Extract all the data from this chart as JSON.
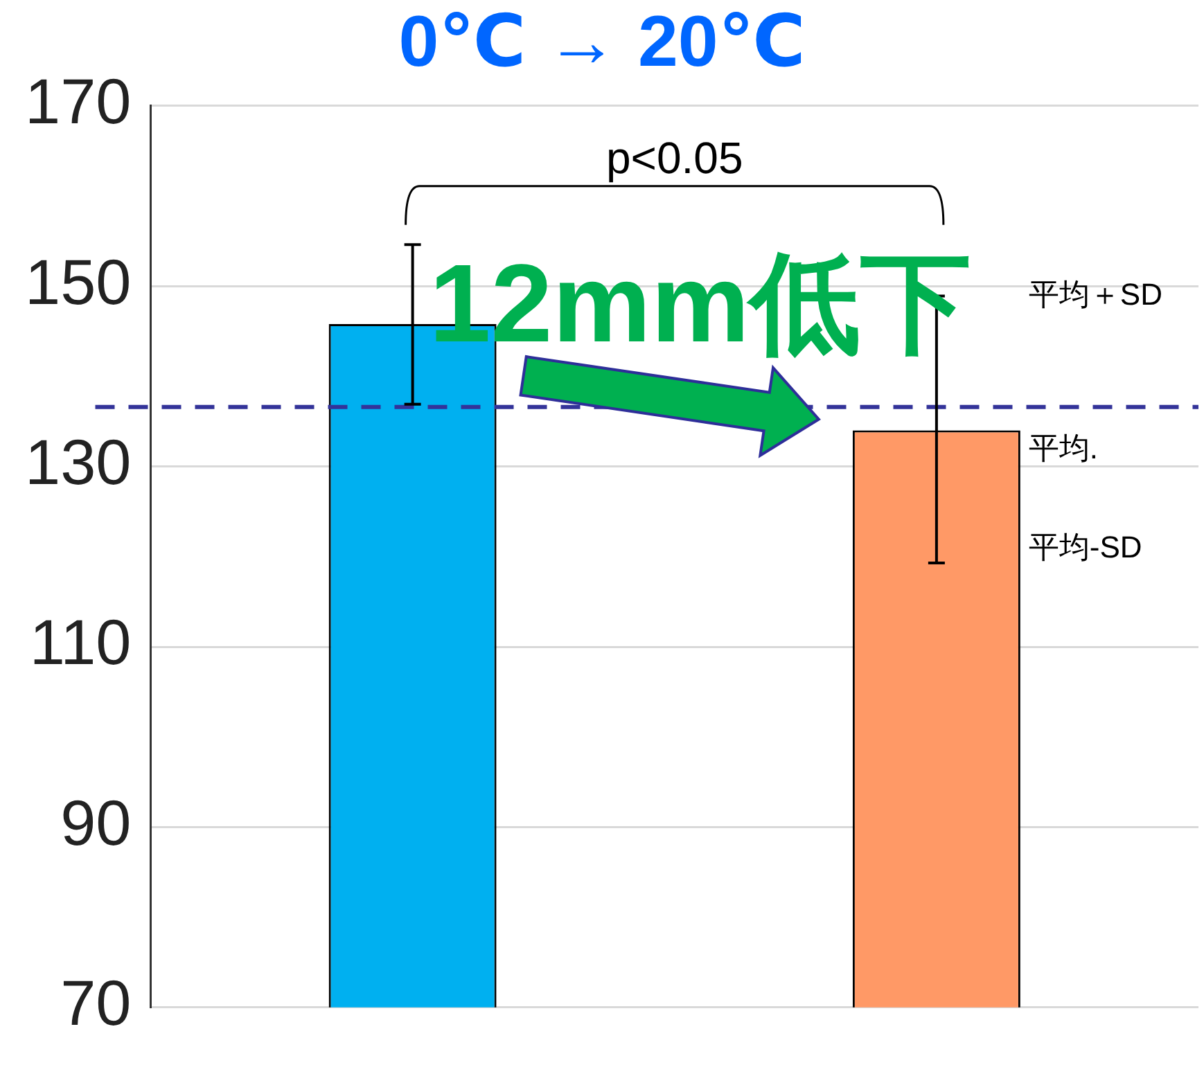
{
  "chart_data": {
    "type": "bar",
    "title": "0℃ → 20℃",
    "categories": [
      null,
      null
    ],
    "values": [
      145.8,
      134.0
    ],
    "colors": [
      "#00b0f0",
      "#ff9966"
    ],
    "errors": [
      [
        136.9,
        154.6
      ],
      [
        119.3,
        148.9
      ]
    ],
    "ylim": [
      70,
      170
    ],
    "yticks": [
      70,
      90,
      110,
      130,
      150,
      170
    ],
    "grid": "y",
    "legend": false,
    "ref_lines": [
      {
        "axis": "y",
        "value": 136.6,
        "color": "#333399",
        "line_style": "dashed"
      }
    ],
    "annotations": [
      "p<0.05",
      "12mm低下",
      "平均＋SD",
      "平均.",
      "平均-SD"
    ]
  }
}
